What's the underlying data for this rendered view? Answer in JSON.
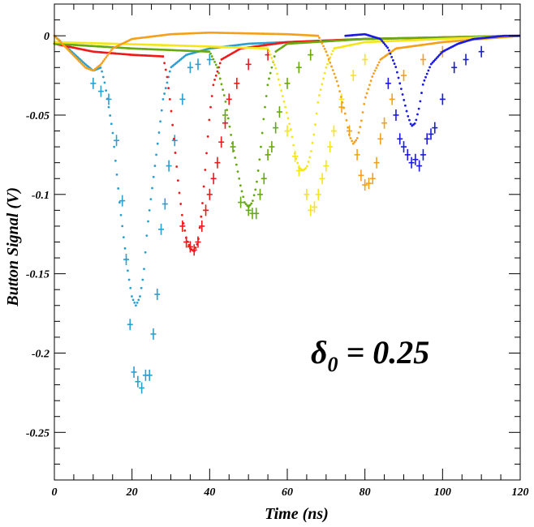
{
  "chart_data": {
    "type": "scatter",
    "xlabel": "Time (ns)",
    "ylabel": "Button Signal (V)",
    "xlim": [
      0,
      120
    ],
    "ylim": [
      -0.28,
      0.02
    ],
    "x_ticks": [
      "0",
      "20",
      "40",
      "60",
      "80",
      "100",
      "120"
    ],
    "y_ticks": [
      "0",
      "-0.05",
      "-0.1",
      "-0.15",
      "-0.2",
      "-0.25"
    ],
    "annotation": {
      "symbol": "δ",
      "subscript": "0",
      "text": " = 0.25"
    },
    "grid": false,
    "legend": "none",
    "series": [
      {
        "color": "#2aa0d0",
        "simulation": [
          [
            0,
            0
          ],
          [
            8,
            -0.018
          ],
          [
            10,
            -0.022
          ],
          [
            12,
            -0.02
          ],
          [
            13,
            -0.03
          ],
          [
            15,
            -0.06
          ],
          [
            17,
            -0.11
          ],
          [
            19,
            -0.15
          ],
          [
            20,
            -0.165
          ],
          [
            21,
            -0.17
          ],
          [
            22,
            -0.165
          ],
          [
            23,
            -0.15
          ],
          [
            24,
            -0.12
          ],
          [
            26,
            -0.08
          ],
          [
            28,
            -0.04
          ],
          [
            30,
            -0.02
          ],
          [
            34,
            -0.012
          ],
          [
            40,
            -0.008
          ],
          [
            50,
            -0.005
          ],
          [
            60,
            -0.004
          ],
          [
            80,
            -0.002
          ],
          [
            120,
            0
          ]
        ],
        "measured": [
          [
            10,
            -0.03
          ],
          [
            12,
            -0.035
          ],
          [
            14,
            -0.04
          ],
          [
            16,
            -0.066
          ],
          [
            17.5,
            -0.104
          ],
          [
            18.5,
            -0.141
          ],
          [
            19.5,
            -0.182
          ],
          [
            20.5,
            -0.212
          ],
          [
            21.5,
            -0.218
          ],
          [
            22.5,
            -0.222
          ],
          [
            23.5,
            -0.214
          ],
          [
            24.5,
            -0.214
          ],
          [
            25.5,
            -0.188
          ],
          [
            26.5,
            -0.163
          ],
          [
            27.5,
            -0.122
          ],
          [
            28.5,
            -0.106
          ],
          [
            29.5,
            -0.082
          ],
          [
            31,
            -0.066
          ],
          [
            33,
            -0.04
          ],
          [
            35,
            -0.02
          ],
          [
            37,
            -0.018
          ],
          [
            40,
            -0.015
          ]
        ]
      },
      {
        "color": "#ee1a1a",
        "simulation": [
          [
            0,
            -0.005
          ],
          [
            10,
            -0.01
          ],
          [
            20,
            -0.012
          ],
          [
            28,
            -0.013
          ],
          [
            29,
            -0.025
          ],
          [
            30,
            -0.045
          ],
          [
            31,
            -0.07
          ],
          [
            32,
            -0.095
          ],
          [
            33,
            -0.115
          ],
          [
            34,
            -0.128
          ],
          [
            35,
            -0.134
          ],
          [
            36,
            -0.136
          ],
          [
            37,
            -0.13
          ],
          [
            38,
            -0.11
          ],
          [
            39,
            -0.08
          ],
          [
            40,
            -0.05
          ],
          [
            41,
            -0.03
          ],
          [
            43,
            -0.015
          ],
          [
            48,
            -0.008
          ],
          [
            60,
            -0.004
          ],
          [
            80,
            -0.002
          ],
          [
            120,
            0
          ]
        ],
        "measured": [
          [
            33,
            -0.12
          ],
          [
            34,
            -0.13
          ],
          [
            35,
            -0.133
          ],
          [
            36,
            -0.135
          ],
          [
            37,
            -0.13
          ],
          [
            38,
            -0.12
          ],
          [
            39,
            -0.11
          ],
          [
            40,
            -0.1
          ],
          [
            41,
            -0.09
          ],
          [
            42,
            -0.08
          ],
          [
            43,
            -0.067
          ],
          [
            44,
            -0.055
          ],
          [
            45,
            -0.04
          ],
          [
            47,
            -0.03
          ],
          [
            50,
            -0.018
          ],
          [
            55,
            -0.012
          ]
        ]
      },
      {
        "color": "#66aa10",
        "simulation": [
          [
            0,
            -0.005
          ],
          [
            20,
            -0.008
          ],
          [
            40,
            -0.01
          ],
          [
            42,
            -0.02
          ],
          [
            44,
            -0.04
          ],
          [
            46,
            -0.07
          ],
          [
            48,
            -0.095
          ],
          [
            49,
            -0.105
          ],
          [
            50,
            -0.108
          ],
          [
            51,
            -0.105
          ],
          [
            52,
            -0.095
          ],
          [
            53,
            -0.075
          ],
          [
            54,
            -0.05
          ],
          [
            55,
            -0.03
          ],
          [
            57,
            -0.01
          ],
          [
            60,
            -0.005
          ],
          [
            80,
            -0.002
          ],
          [
            120,
            0
          ]
        ],
        "measured": [
          [
            44,
            -0.05
          ],
          [
            46,
            -0.07
          ],
          [
            48,
            -0.105
          ],
          [
            50,
            -0.11
          ],
          [
            51,
            -0.112
          ],
          [
            52,
            -0.112
          ],
          [
            53,
            -0.1
          ],
          [
            54,
            -0.09
          ],
          [
            55,
            -0.075
          ],
          [
            56,
            -0.07
          ],
          [
            57,
            -0.058
          ],
          [
            58,
            -0.048
          ],
          [
            60,
            -0.03
          ],
          [
            63,
            -0.02
          ],
          [
            66,
            -0.012
          ]
        ]
      },
      {
        "color": "#f5e61a",
        "simulation": [
          [
            0,
            -0.004
          ],
          [
            30,
            -0.006
          ],
          [
            55,
            -0.008
          ],
          [
            57,
            -0.02
          ],
          [
            59,
            -0.04
          ],
          [
            61,
            -0.06
          ],
          [
            62,
            -0.075
          ],
          [
            63,
            -0.083
          ],
          [
            64,
            -0.085
          ],
          [
            65,
            -0.083
          ],
          [
            66,
            -0.075
          ],
          [
            67,
            -0.06
          ],
          [
            68,
            -0.04
          ],
          [
            70,
            -0.02
          ],
          [
            72,
            -0.008
          ],
          [
            80,
            -0.004
          ],
          [
            120,
            0
          ]
        ],
        "measured": [
          [
            60,
            -0.06
          ],
          [
            62,
            -0.076
          ],
          [
            63,
            -0.085
          ],
          [
            65,
            -0.1
          ],
          [
            66,
            -0.11
          ],
          [
            67,
            -0.108
          ],
          [
            68,
            -0.1
          ],
          [
            69,
            -0.09
          ],
          [
            70,
            -0.082
          ],
          [
            71,
            -0.07
          ],
          [
            72,
            -0.06
          ],
          [
            74,
            -0.04
          ],
          [
            77,
            -0.025
          ],
          [
            80,
            -0.015
          ]
        ]
      },
      {
        "color": "#f5a01a",
        "simulation": [
          [
            0,
            0
          ],
          [
            8,
            -0.02
          ],
          [
            10,
            -0.022
          ],
          [
            12,
            -0.018
          ],
          [
            15,
            -0.008
          ],
          [
            20,
            -0.002
          ],
          [
            30,
            0.001
          ],
          [
            40,
            0.002
          ],
          [
            60,
            0.001
          ],
          [
            68,
            0
          ],
          [
            70,
            -0.01
          ],
          [
            73,
            -0.03
          ],
          [
            75,
            -0.05
          ],
          [
            76,
            -0.063
          ],
          [
            77,
            -0.068
          ],
          [
            78,
            -0.065
          ],
          [
            79,
            -0.055
          ],
          [
            80,
            -0.04
          ],
          [
            82,
            -0.025
          ],
          [
            84,
            -0.015
          ],
          [
            88,
            -0.008
          ],
          [
            100,
            -0.004
          ],
          [
            120,
            0
          ]
        ],
        "measured": [
          [
            74,
            -0.045
          ],
          [
            76,
            -0.06
          ],
          [
            78,
            -0.075
          ],
          [
            79,
            -0.088
          ],
          [
            80,
            -0.094
          ],
          [
            81,
            -0.093
          ],
          [
            82,
            -0.09
          ],
          [
            83,
            -0.08
          ],
          [
            84,
            -0.065
          ],
          [
            85,
            -0.055
          ],
          [
            87,
            -0.04
          ],
          [
            90,
            -0.025
          ],
          [
            95,
            -0.015
          ],
          [
            100,
            -0.01
          ]
        ]
      },
      {
        "color": "#1a1ae0",
        "simulation": [
          [
            75,
            0
          ],
          [
            80,
            0.001
          ],
          [
            84,
            -0.002
          ],
          [
            86,
            -0.008
          ],
          [
            88,
            -0.02
          ],
          [
            90,
            -0.04
          ],
          [
            91,
            -0.05
          ],
          [
            92,
            -0.057
          ],
          [
            93,
            -0.055
          ],
          [
            94,
            -0.045
          ],
          [
            95,
            -0.03
          ],
          [
            97,
            -0.018
          ],
          [
            100,
            -0.01
          ],
          [
            104,
            -0.005
          ],
          [
            108,
            -0.002
          ],
          [
            112,
            -0.001
          ],
          [
            116,
            0
          ],
          [
            120,
            0
          ]
        ],
        "measured": [
          [
            86,
            -0.03
          ],
          [
            88,
            -0.05
          ],
          [
            89,
            -0.065
          ],
          [
            90,
            -0.07
          ],
          [
            91,
            -0.075
          ],
          [
            92,
            -0.08
          ],
          [
            93,
            -0.078
          ],
          [
            94,
            -0.082
          ],
          [
            95,
            -0.075
          ],
          [
            96,
            -0.065
          ],
          [
            97,
            -0.062
          ],
          [
            98,
            -0.058
          ],
          [
            100,
            -0.04
          ],
          [
            103,
            -0.02
          ],
          [
            106,
            -0.015
          ],
          [
            110,
            -0.01
          ]
        ]
      }
    ]
  }
}
